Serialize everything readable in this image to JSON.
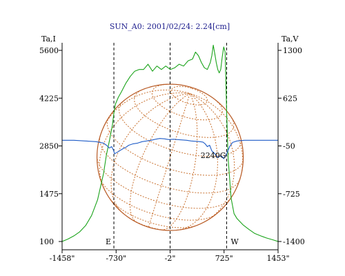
{
  "colors": {
    "background": "#ffffff",
    "axis": "#000000",
    "title": "#1c1c8c",
    "intensity": "#1aa31a",
    "polarization": "#1f5cc7",
    "disk": "#b85a24",
    "grid": "#c8702e"
  },
  "chart_data": {
    "type": "line",
    "title": "SUN_A0: 2001/02/24: 2.24[cm]",
    "left_axis_label": "Ta,I",
    "right_axis_label": "Ta,V",
    "xlim": [
      -1458,
      1453
    ],
    "ylim_left": [
      100,
      5600
    ],
    "ylim_right": [
      -1400,
      1300
    ],
    "x_tick_labels": [
      "-1458\"",
      "-730\"",
      "-2\"",
      "725\"",
      "1453\""
    ],
    "x_tick_values": [
      -1458,
      -730,
      -2,
      725,
      1453
    ],
    "left_tick_labels": [
      "5600",
      "4225",
      "2850",
      "1475",
      "100"
    ],
    "left_tick_values": [
      5600,
      4225,
      2850,
      1475,
      100
    ],
    "right_tick_labels": [
      "1300",
      "625",
      "-50",
      "-725",
      "-1400"
    ],
    "right_tick_values": [
      1300,
      625,
      -50,
      -725,
      -1400
    ],
    "limb_markers": [
      {
        "label": "E",
        "x": -760
      },
      {
        "label": "W",
        "x": 760
      }
    ],
    "center_marker_x": -2,
    "annotations": [
      {
        "text": "2240G",
        "x": 580,
        "y_left": 2500
      }
    ],
    "series": [
      {
        "axis": "left",
        "color": "#1aa31a",
        "x": [
          -1458,
          -1380,
          -1300,
          -1220,
          -1140,
          -1060,
          -980,
          -900,
          -860,
          -820,
          -780,
          -760,
          -740,
          -700,
          -660,
          -600,
          -540,
          -480,
          -420,
          -360,
          -300,
          -240,
          -180,
          -120,
          -60,
          0,
          60,
          120,
          180,
          240,
          300,
          340,
          380,
          420,
          460,
          500,
          540,
          560,
          580,
          600,
          620,
          640,
          660,
          680,
          700,
          720,
          740,
          760,
          780,
          820,
          860,
          900,
          980,
          1060,
          1140,
          1220,
          1300,
          1380,
          1453
        ],
        "y": [
          100,
          170,
          260,
          380,
          560,
          850,
          1300,
          2050,
          2600,
          3000,
          3450,
          3800,
          4050,
          4250,
          4400,
          4650,
          4850,
          5000,
          5050,
          5050,
          5200,
          5000,
          5150,
          5050,
          5150,
          5050,
          5100,
          5200,
          5150,
          5300,
          5350,
          5550,
          5450,
          5250,
          5100,
          5050,
          5250,
          5450,
          5750,
          5500,
          5250,
          5050,
          4950,
          5050,
          5400,
          5700,
          5550,
          3800,
          2500,
          1350,
          900,
          760,
          580,
          450,
          330,
          260,
          200,
          150,
          100
        ]
      },
      {
        "axis": "right",
        "color": "#1f5cc7",
        "x": [
          -1458,
          -1300,
          -1150,
          -1000,
          -900,
          -860,
          -820,
          -790,
          -770,
          -750,
          -700,
          -640,
          -600,
          -560,
          -500,
          -440,
          -380,
          -320,
          -260,
          -200,
          -140,
          -80,
          -20,
          40,
          100,
          160,
          220,
          280,
          340,
          400,
          440,
          470,
          500,
          530,
          560,
          600,
          640,
          680,
          700,
          720,
          740,
          760,
          780,
          800,
          840,
          900,
          1000,
          1150,
          1300,
          1453
        ],
        "y": [
          30,
          30,
          20,
          10,
          -10,
          -40,
          -80,
          -60,
          -100,
          -160,
          -130,
          -90,
          -70,
          -40,
          -20,
          -10,
          10,
          20,
          30,
          45,
          55,
          50,
          40,
          45,
          40,
          35,
          30,
          20,
          15,
          10,
          5,
          -20,
          -60,
          -40,
          -120,
          -160,
          -210,
          -190,
          -200,
          -230,
          -200,
          -160,
          -110,
          -60,
          0,
          20,
          30,
          30,
          30,
          30
        ]
      }
    ]
  }
}
